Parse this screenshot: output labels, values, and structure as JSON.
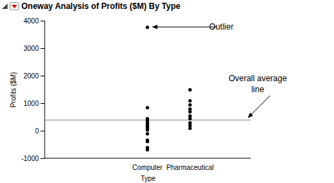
{
  "chart_data": {
    "type": "scatter",
    "title": "Oneway Analysis of Profits ($M) By Type",
    "x_label": "Type",
    "y_label": "Profits ($M)",
    "categories": [
      "Computer",
      "Pharmaceutical"
    ],
    "values": [
      [
        3770,
        850,
        450,
        380,
        300,
        230,
        160,
        100,
        40,
        -100,
        -330,
        -380,
        -600,
        -680
      ],
      [
        1500,
        1100,
        950,
        800,
        700,
        550,
        450,
        300,
        200,
        100
      ]
    ],
    "color": "#000000",
    "ylim": [
      -1000,
      4000
    ],
    "yticks": [
      -1000,
      0,
      1000,
      2000,
      3000,
      4000
    ],
    "grid": false,
    "reference_line": {
      "value": 400,
      "label": "Overall average line"
    },
    "annotations": [
      {
        "text": "Outlier",
        "category": "Computer",
        "value": 3770
      }
    ]
  }
}
